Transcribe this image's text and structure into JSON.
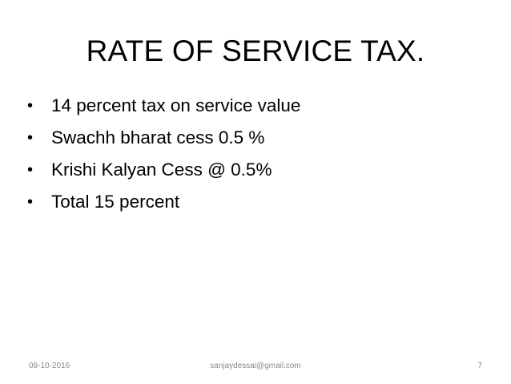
{
  "slide": {
    "title": "RATE OF SERVICE TAX.",
    "bullets": [
      "14 percent tax on service value",
      "Swachh bharat cess  0.5 %",
      "Krishi Kalyan Cess @ 0.5%",
      "Total 15 percent"
    ],
    "bullet_glyph": "•"
  },
  "footer": {
    "date": "08-10-2016",
    "email": "sanjaydessai@gmail.com",
    "page_number": "7"
  }
}
